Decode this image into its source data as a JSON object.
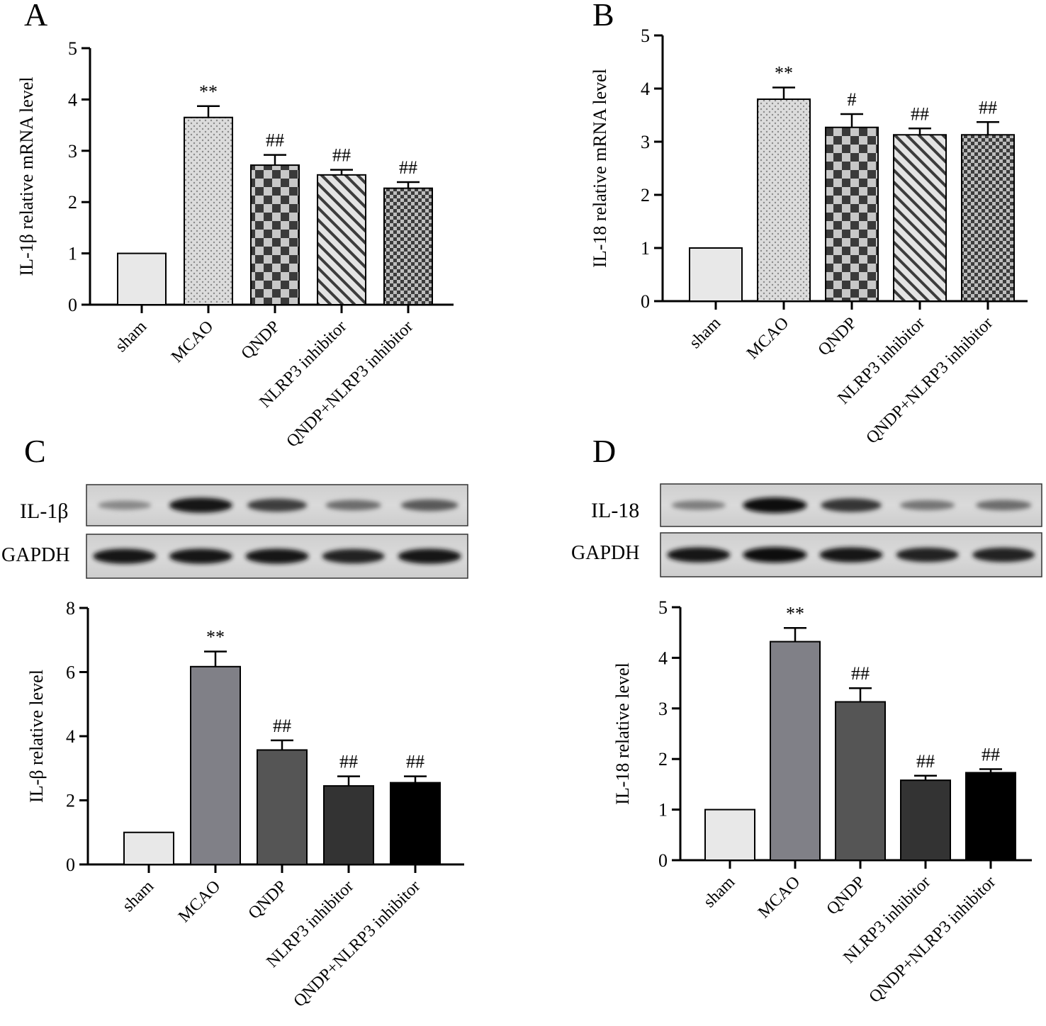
{
  "panels": [
    {
      "letter": "A",
      "chart_data": {
        "type": "bar",
        "categories": [
          "sham",
          "MCAO",
          "QNDP",
          "NLRP3 inhibitor",
          "QNDP+NLRP3 inhibitor"
        ],
        "values": [
          1.0,
          3.65,
          2.72,
          2.53,
          2.27
        ],
        "errors": [
          0,
          0.22,
          0.2,
          0.1,
          0.12
        ],
        "significance": [
          "",
          "**",
          "##",
          "##",
          "##"
        ],
        "ylabel": "IL-1β relative mRNA level",
        "ylim": [
          0,
          5
        ],
        "yticks": [
          0,
          1,
          2,
          3,
          4,
          5
        ],
        "grid": false,
        "fills": [
          "pale",
          "dots",
          "checker-large",
          "diagonal",
          "checker-small"
        ]
      }
    },
    {
      "letter": "B",
      "chart_data": {
        "type": "bar",
        "categories": [
          "sham",
          "MCAO",
          "QNDP",
          "NLRP3 inhibitor",
          "QNDP+NLRP3 inhibitor"
        ],
        "values": [
          1.0,
          3.8,
          3.27,
          3.13,
          3.13
        ],
        "errors": [
          0,
          0.22,
          0.25,
          0.12,
          0.24
        ],
        "significance": [
          "",
          "**",
          "#",
          "##",
          "##"
        ],
        "ylabel": "IL-18 relative mRNA level",
        "ylim": [
          0,
          5
        ],
        "yticks": [
          0,
          1,
          2,
          3,
          4,
          5
        ],
        "grid": false,
        "fills": [
          "pale",
          "dots",
          "checker-large",
          "diagonal",
          "checker-small"
        ]
      }
    },
    {
      "letter": "C",
      "blot": {
        "protein": "IL-1β",
        "control": "GAPDH",
        "target_band_intensity": [
          0.35,
          0.95,
          0.75,
          0.5,
          0.6
        ],
        "control_band_intensity": [
          0.95,
          0.95,
          0.95,
          0.9,
          0.95
        ]
      },
      "chart_data": {
        "type": "bar",
        "categories": [
          "sham",
          "MCAO",
          "QNDP",
          "NLRP3 inhibitor",
          "QNDP+NLRP3 inhibitor"
        ],
        "values": [
          1.0,
          6.17,
          3.57,
          2.45,
          2.55
        ],
        "errors": [
          0,
          0.47,
          0.3,
          0.3,
          0.2
        ],
        "significance": [
          "",
          "**",
          "##",
          "##",
          "##"
        ],
        "ylabel": "IL-β relative level",
        "ylim": [
          0,
          8
        ],
        "yticks": [
          0,
          2,
          4,
          6,
          8
        ],
        "grid": false,
        "fills": [
          "#e8e8e8",
          "#808087",
          "#555555",
          "#333333",
          "#000000"
        ]
      }
    },
    {
      "letter": "D",
      "blot": {
        "protein": "IL-18",
        "control": "GAPDH",
        "target_band_intensity": [
          0.4,
          1.0,
          0.8,
          0.45,
          0.5
        ],
        "control_band_intensity": [
          0.95,
          1.0,
          0.95,
          0.9,
          0.9
        ]
      },
      "chart_data": {
        "type": "bar",
        "categories": [
          "sham",
          "MCAO",
          "QNDP",
          "NLRP3 inhibitor",
          "QNDP+NLRP3 inhibitor"
        ],
        "values": [
          1.0,
          4.32,
          3.13,
          1.58,
          1.73
        ],
        "errors": [
          0,
          0.27,
          0.27,
          0.09,
          0.07
        ],
        "significance": [
          "",
          "**",
          "##",
          "##",
          "##"
        ],
        "ylabel": "IL-18 relative level",
        "ylim": [
          0,
          5
        ],
        "yticks": [
          0,
          1,
          2,
          3,
          4,
          5
        ],
        "grid": false,
        "fills": [
          "#e8e8e8",
          "#808087",
          "#555555",
          "#333333",
          "#000000"
        ]
      }
    }
  ]
}
